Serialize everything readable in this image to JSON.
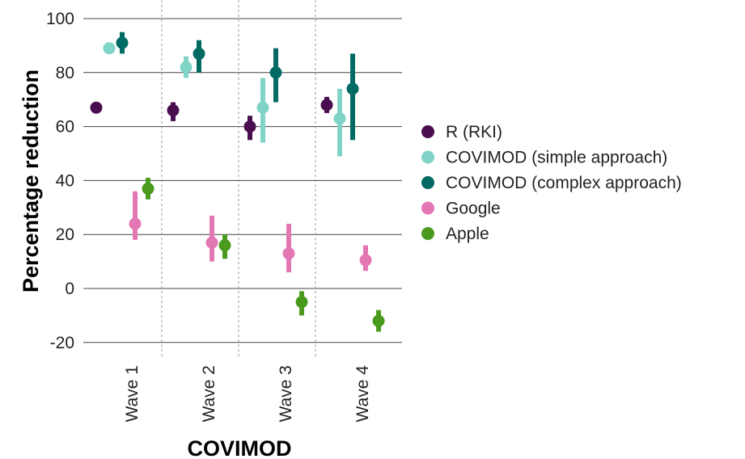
{
  "chart_data": {
    "type": "scatter",
    "xlabel": "COVIMOD",
    "ylabel": "Percentage reduction",
    "categories": [
      "Wave 1",
      "Wave 2",
      "Wave 3",
      "Wave 4"
    ],
    "ylim": [
      -24,
      104
    ],
    "yticks": [
      100,
      80,
      60,
      40,
      20,
      0,
      -20
    ],
    "grid": "horizontal",
    "legend_position": "right",
    "series": [
      {
        "name": "R (RKI)",
        "color": "#4a0d4f",
        "points": [
          {
            "category": "Wave 1",
            "value": 67,
            "lower": 65,
            "upper": 69
          },
          {
            "category": "Wave 2",
            "value": 66,
            "lower": 62,
            "upper": 69
          },
          {
            "category": "Wave 3",
            "value": 60,
            "lower": 55,
            "upper": 64
          },
          {
            "category": "Wave 4",
            "value": 68,
            "lower": 65,
            "upper": 71
          }
        ]
      },
      {
        "name": "COVIMOD (simple approach)",
        "color": "#7fd3c7",
        "points": [
          {
            "category": "Wave 1",
            "value": 89,
            "lower": 87,
            "upper": 91
          },
          {
            "category": "Wave 2",
            "value": 82,
            "lower": 78,
            "upper": 86
          },
          {
            "category": "Wave 3",
            "value": 67,
            "lower": 54,
            "upper": 78
          },
          {
            "category": "Wave 4",
            "value": 63,
            "lower": 49,
            "upper": 74
          }
        ]
      },
      {
        "name": "COVIMOD (complex approach)",
        "color": "#006a63",
        "points": [
          {
            "category": "Wave 1",
            "value": 91,
            "lower": 87,
            "upper": 95
          },
          {
            "category": "Wave 2",
            "value": 87,
            "lower": 80,
            "upper": 92
          },
          {
            "category": "Wave 3",
            "value": 80,
            "lower": 69,
            "upper": 89
          },
          {
            "category": "Wave 4",
            "value": 74,
            "lower": 55,
            "upper": 87
          }
        ]
      },
      {
        "name": "Google",
        "color": "#e377b3",
        "points": [
          {
            "category": "Wave 1",
            "value": 24,
            "lower": 18,
            "upper": 36
          },
          {
            "category": "Wave 2",
            "value": 17,
            "lower": 10,
            "upper": 27
          },
          {
            "category": "Wave 3",
            "value": 13,
            "lower": 6,
            "upper": 24
          },
          {
            "category": "Wave 4",
            "value": 10.5,
            "lower": 6.5,
            "upper": 16
          }
        ]
      },
      {
        "name": "Apple",
        "color": "#4a9a1e",
        "points": [
          {
            "category": "Wave 1",
            "value": 37,
            "lower": 33,
            "upper": 41
          },
          {
            "category": "Wave 2",
            "value": 16,
            "lower": 11,
            "upper": 20
          },
          {
            "category": "Wave 3",
            "value": -5,
            "lower": -10,
            "upper": -1
          },
          {
            "category": "Wave 4",
            "value": -12,
            "lower": -16,
            "upper": -8
          }
        ]
      }
    ]
  }
}
